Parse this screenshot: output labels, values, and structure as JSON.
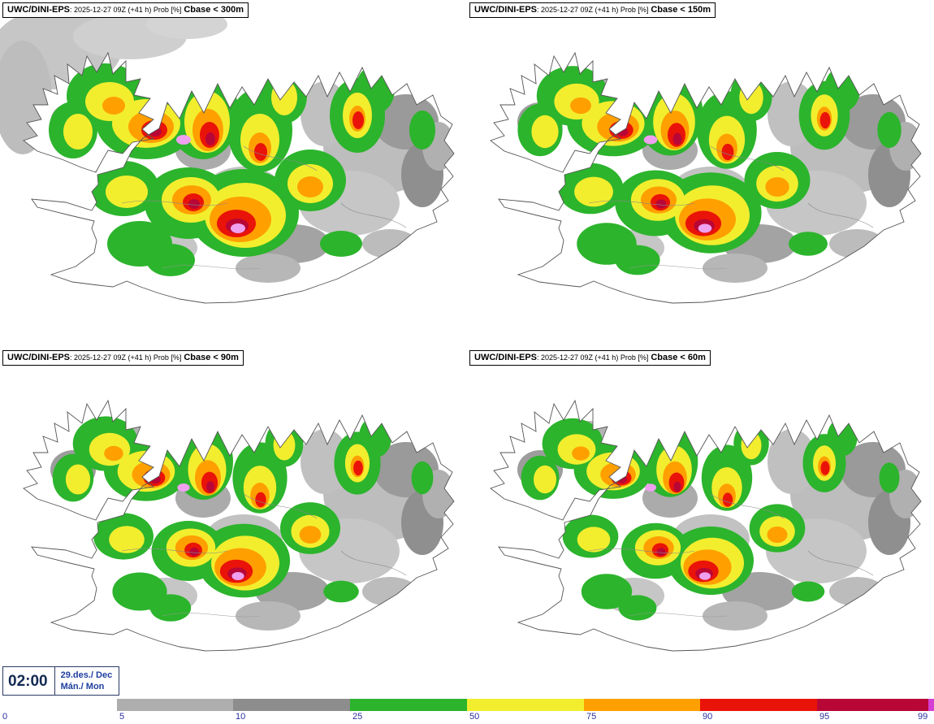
{
  "panels": [
    {
      "model": "UWC/DINI-EPS",
      "run_info": ": 2025-12-27 09Z (+41 h) Prob [%]",
      "threshold": "Cbase < 300m"
    },
    {
      "model": "UWC/DINI-EPS",
      "run_info": ": 2025-12-27 09Z (+41 h) Prob [%]",
      "threshold": "Cbase < 150m"
    },
    {
      "model": "UWC/DINI-EPS",
      "run_info": ": 2025-12-27 09Z (+41 h) Prob [%]",
      "threshold": "Cbase < 90m"
    },
    {
      "model": "UWC/DINI-EPS",
      "run_info": ": 2025-12-27 09Z (+41 h) Prob [%]",
      "threshold": "Cbase < 60m"
    }
  ],
  "footer": {
    "time": "02:00",
    "date": "29.des./ Dec",
    "day": "Mán./ Mon"
  },
  "legend": {
    "ticks": [
      "0",
      "5",
      "10",
      "25",
      "50",
      "75",
      "90",
      "95",
      "99"
    ],
    "colors": [
      "#ffffff",
      "#aeaeae",
      "#8d8d8d",
      "#2cb42c",
      "#f2ee2e",
      "#ffa000",
      "#ea1309",
      "#b80636",
      "#d53ed5"
    ],
    "tick_color": "#2a2f9e"
  }
}
